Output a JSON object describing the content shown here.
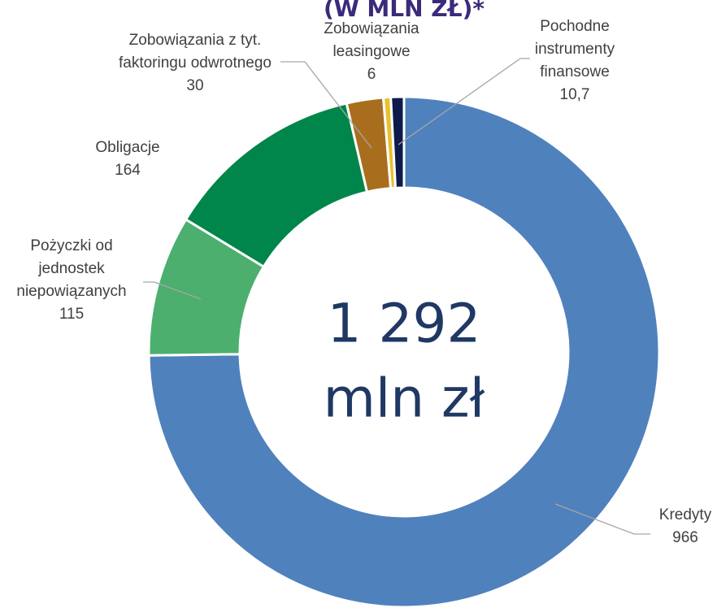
{
  "chart_data": {
    "type": "donut",
    "title": "(W MLN ZŁ)*",
    "center_label": [
      "1 292",
      "mln zł"
    ],
    "categories": [
      "Kredyty",
      "Pożyczki od jednostek niepowiązanych",
      "Obligacje",
      "Zobowiązania z tyt. faktoringu odwrotnego",
      "Zobowiązania leasingowe",
      "Pochodne instrumenty finansowe"
    ],
    "values": [
      966,
      115,
      164,
      30,
      6,
      10.7
    ],
    "value_labels": [
      null,
      null,
      null,
      null,
      null,
      "10,7"
    ],
    "colors": [
      "#4f81bd",
      "#4caf6e",
      "#00854a",
      "#a86e1e",
      "#e8c030",
      "#0d1b4b"
    ]
  }
}
